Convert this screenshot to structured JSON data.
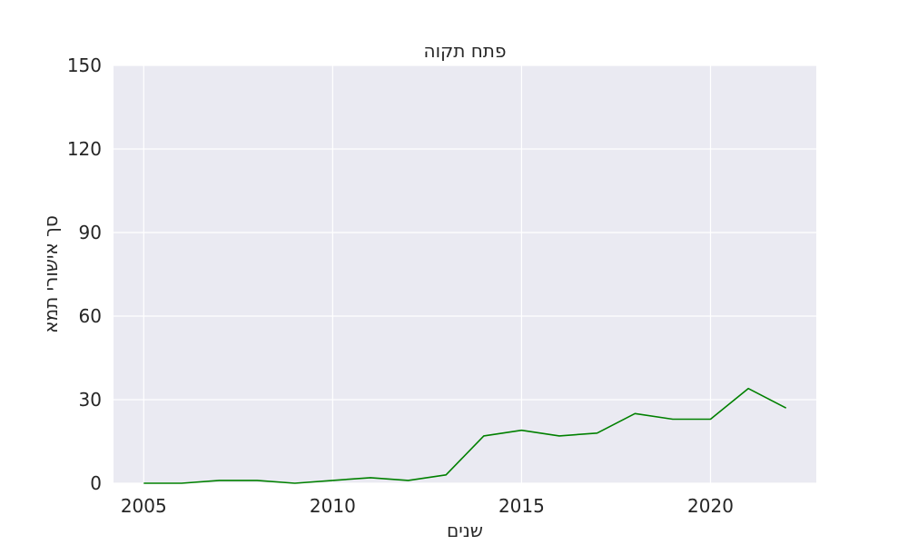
{
  "chart_data": {
    "type": "line",
    "title": "פתח תקוה",
    "xlabel": "שנים",
    "ylabel": "סך אישורי תמא",
    "xlim": [
      2004.2,
      2022.8
    ],
    "ylim": [
      0,
      150
    ],
    "xticks": [
      2005,
      2010,
      2015,
      2020
    ],
    "yticks": [
      0,
      30,
      60,
      90,
      120,
      150
    ],
    "grid": true,
    "series": [
      {
        "color": "#008000",
        "x": [
          2005,
          2006,
          2007,
          2008,
          2009,
          2010,
          2011,
          2012,
          2013,
          2014,
          2015,
          2016,
          2017,
          2018,
          2019,
          2020,
          2021,
          2022
        ],
        "y": [
          0,
          0,
          1,
          1,
          0,
          1,
          2,
          1,
          3,
          17,
          19,
          17,
          18,
          25,
          23,
          23,
          34,
          27
        ]
      }
    ]
  }
}
